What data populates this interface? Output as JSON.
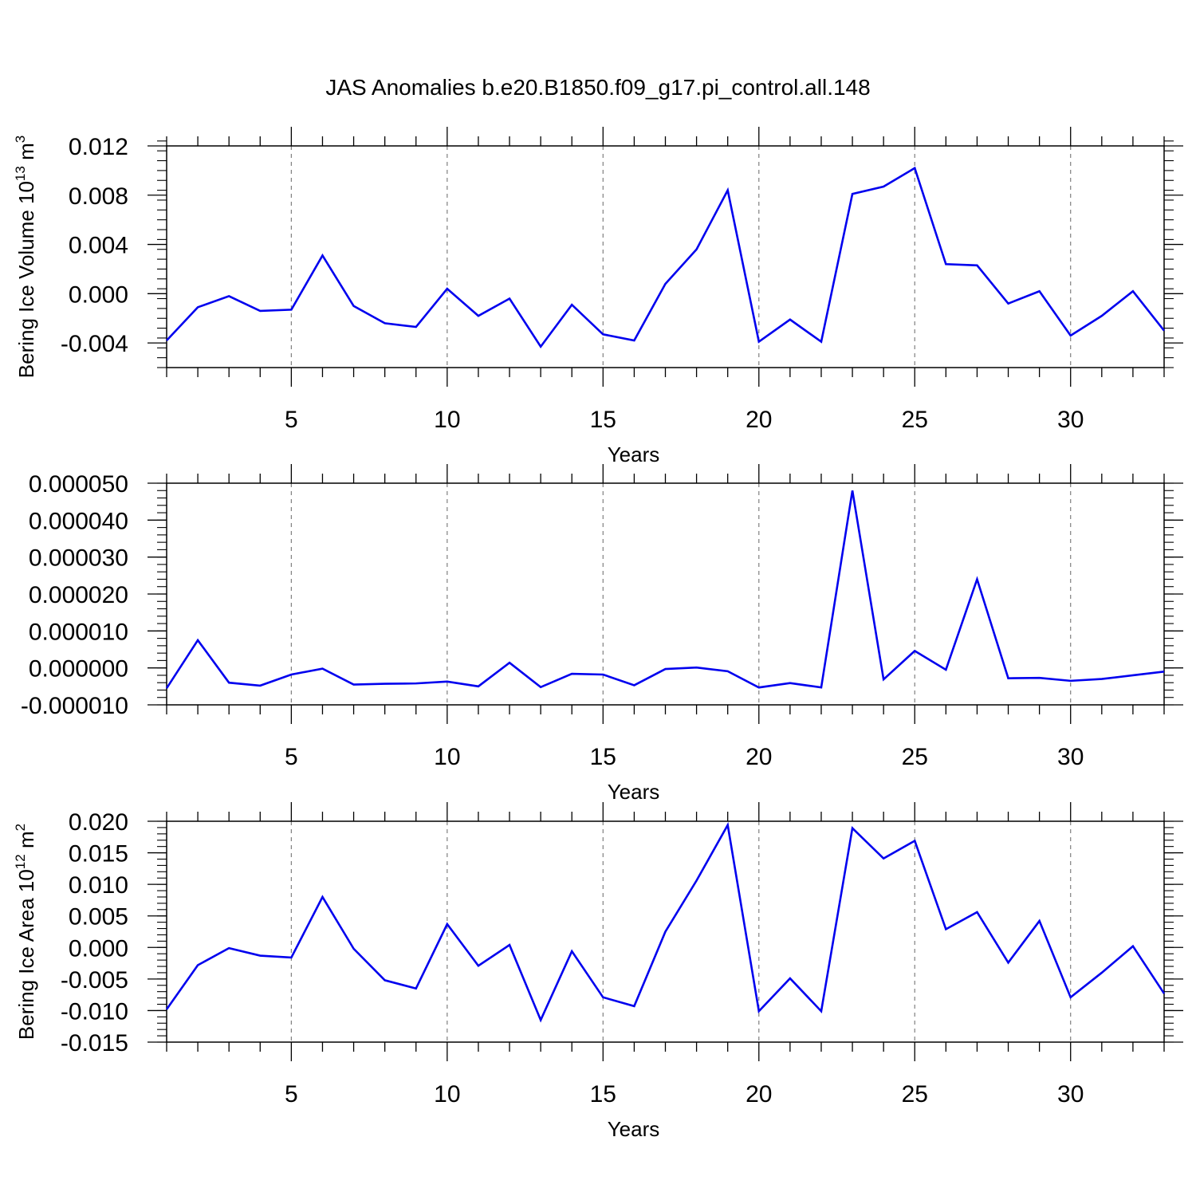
{
  "title": "JAS Anomalies b.e20.B1850.f09_g17.pi_control.all.148",
  "colors": {
    "line": "#0000ee",
    "frame": "#000000",
    "grid": "#808080"
  },
  "chart_data": [
    {
      "type": "line",
      "xlabel": "Years",
      "ylabel": {
        "main": "Bering Ice Volume 10",
        "exp": "13",
        "unit": " m",
        "unit_exp": "3"
      },
      "xlim": [
        1,
        33
      ],
      "ylim": [
        -0.006,
        0.012
      ],
      "xticks": [
        5,
        10,
        15,
        20,
        25,
        30
      ],
      "xtick_labels": [
        "5",
        "10",
        "15",
        "20",
        "25",
        "30"
      ],
      "yticks": [
        -0.004,
        0.0,
        0.004,
        0.008,
        0.012
      ],
      "ytick_labels": [
        "-0.004",
        "0.000",
        "0.004",
        "0.008",
        "0.012"
      ],
      "grid": "vertical dashed",
      "series": [
        {
          "x": [
            1,
            2,
            3,
            4,
            5,
            6,
            7,
            8,
            9,
            10,
            11,
            12,
            13,
            14,
            15,
            16,
            17,
            18,
            19,
            20,
            21,
            22,
            23,
            24,
            25,
            26,
            27,
            28,
            29,
            30,
            31,
            32,
            33
          ],
          "values": [
            -0.0038,
            -0.0011,
            -0.0002,
            -0.0014,
            -0.0013,
            0.0031,
            -0.001,
            -0.0024,
            -0.0027,
            0.0004,
            -0.0018,
            -0.0004,
            -0.0043,
            -0.0009,
            -0.0033,
            -0.0038,
            0.0008,
            0.0036,
            0.0084,
            -0.0039,
            -0.0021,
            -0.0039,
            0.0081,
            0.0087,
            0.0102,
            0.0024,
            0.0023,
            -0.0008,
            0.0002,
            -0.0034,
            -0.0018,
            0.0002,
            -0.003
          ]
        }
      ]
    },
    {
      "type": "line",
      "xlabel": "Years",
      "ylabel": null,
      "xlim": [
        1,
        33
      ],
      "ylim": [
        -1e-05,
        5e-05
      ],
      "xticks": [
        5,
        10,
        15,
        20,
        25,
        30
      ],
      "xtick_labels": [
        "5",
        "10",
        "15",
        "20",
        "25",
        "30"
      ],
      "yticks": [
        -1e-05,
        0.0,
        1e-05,
        2e-05,
        3e-05,
        4e-05,
        5e-05
      ],
      "ytick_labels": [
        "-0.000010",
        "0.000000",
        "0.000010",
        "0.000020",
        "0.000030",
        "0.000040",
        "0.000050"
      ],
      "grid": "vertical dashed",
      "series": [
        {
          "x": [
            1,
            2,
            3,
            4,
            5,
            6,
            7,
            8,
            9,
            10,
            11,
            12,
            13,
            14,
            15,
            16,
            17,
            18,
            19,
            20,
            21,
            22,
            23,
            24,
            25,
            26,
            27,
            28,
            29,
            30,
            31,
            32,
            33
          ],
          "values": [
            -5.5e-06,
            7.5e-06,
            -4e-06,
            -4.8e-06,
            -1.8e-06,
            -2e-07,
            -4.5e-06,
            -4.3e-06,
            -4.2e-06,
            -3.7e-06,
            -5e-06,
            1.4e-06,
            -5.2e-06,
            -1.6e-06,
            -1.8e-06,
            -4.7e-06,
            -3e-07,
            1e-07,
            -9e-07,
            -5.3e-06,
            -4.1e-06,
            -5.3e-06,
            4.8e-05,
            -3.1e-06,
            4.6e-06,
            -5e-07,
            2.4e-05,
            -2.8e-06,
            -2.7e-06,
            -3.5e-06,
            -3e-06,
            -2e-06,
            -1e-06
          ]
        }
      ]
    },
    {
      "type": "line",
      "xlabel": "Years",
      "ylabel": {
        "main": "Bering Ice Area 10",
        "exp": "12",
        "unit": " m",
        "unit_exp": "2"
      },
      "xlim": [
        1,
        33
      ],
      "ylim": [
        -0.015,
        0.02
      ],
      "xticks": [
        5,
        10,
        15,
        20,
        25,
        30
      ],
      "xtick_labels": [
        "5",
        "10",
        "15",
        "20",
        "25",
        "30"
      ],
      "yticks": [
        -0.015,
        -0.01,
        -0.005,
        0.0,
        0.005,
        0.01,
        0.015,
        0.02
      ],
      "ytick_labels": [
        "-0.015",
        "-0.010",
        "-0.005",
        "0.000",
        "0.005",
        "0.010",
        "0.015",
        "0.020"
      ],
      "grid": "vertical dashed",
      "series": [
        {
          "x": [
            1,
            2,
            3,
            4,
            5,
            6,
            7,
            8,
            9,
            10,
            11,
            12,
            13,
            14,
            15,
            16,
            17,
            18,
            19,
            20,
            21,
            22,
            23,
            24,
            25,
            26,
            27,
            28,
            29,
            30,
            31,
            32,
            33
          ],
          "values": [
            -0.0098,
            -0.0028,
            -0.0001,
            -0.0013,
            -0.0016,
            0.008,
            -0.0002,
            -0.0052,
            -0.0065,
            0.0037,
            -0.0029,
            0.0004,
            -0.0115,
            -0.0006,
            -0.0079,
            -0.0093,
            0.0025,
            0.0106,
            0.0194,
            -0.0101,
            -0.0049,
            -0.0101,
            0.0189,
            0.0141,
            0.0169,
            0.0029,
            0.0056,
            -0.0024,
            0.0042,
            -0.0079,
            -0.004,
            0.0002,
            -0.0073
          ]
        }
      ]
    }
  ]
}
